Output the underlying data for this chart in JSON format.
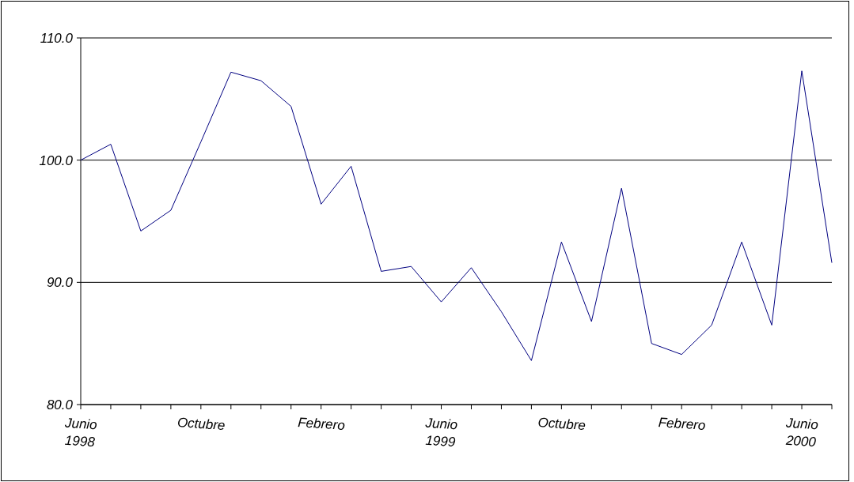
{
  "chart_data": {
    "type": "line",
    "categories": [
      "Junio 1998",
      null,
      null,
      null,
      "Octubre",
      null,
      null,
      null,
      "Febrero",
      null,
      null,
      null,
      "Junio 1999",
      null,
      null,
      null,
      "Octubre",
      null,
      null,
      null,
      "Febrero",
      null,
      null,
      null,
      "Junio 2000",
      null
    ],
    "series": [
      {
        "color": "#000080",
        "values": [
          100.0,
          101.3,
          94.2,
          95.9,
          101.5,
          107.2,
          106.5,
          104.4,
          96.4,
          99.5,
          90.9,
          91.3,
          88.4,
          91.2,
          87.6,
          83.6,
          93.3,
          86.8,
          97.7,
          85.0,
          84.1,
          86.5,
          93.3,
          86.5,
          107.3,
          91.6
        ]
      }
    ],
    "ylim": [
      80,
      110
    ],
    "yticks": [
      {
        "value": 80,
        "label": "80.0"
      },
      {
        "value": 90,
        "label": "90.0"
      },
      {
        "value": 100,
        "label": "100.0"
      },
      {
        "value": 110,
        "label": "110.0"
      }
    ],
    "grid": "y",
    "marker": "none",
    "line_style": "solid"
  }
}
